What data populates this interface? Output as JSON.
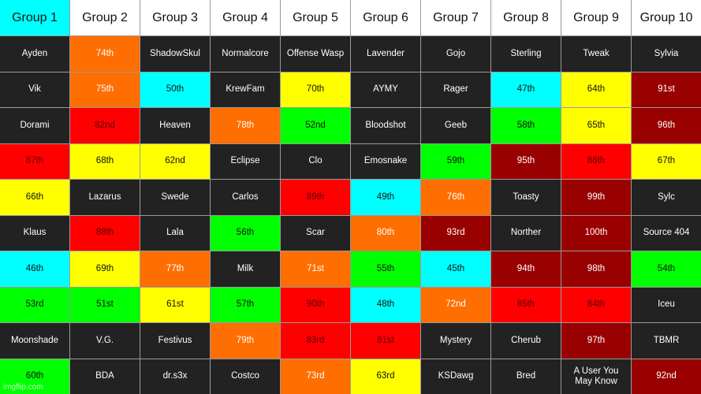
{
  "colors": {
    "cyan": "#00ffff",
    "orange": "#ff6e00",
    "yellow": "#ffff00",
    "green": "#00ff00",
    "red": "#ff0000",
    "darkred": "#990000",
    "dark": "#222222",
    "white": "#ffffff"
  },
  "headers": [
    {
      "label": "Group 1",
      "color": "cyan"
    },
    {
      "label": "Group 2",
      "color": "white"
    },
    {
      "label": "Group 3",
      "color": "white"
    },
    {
      "label": "Group 4",
      "color": "white"
    },
    {
      "label": "Group 5",
      "color": "white"
    },
    {
      "label": "Group 6",
      "color": "white"
    },
    {
      "label": "Group 7",
      "color": "white"
    },
    {
      "label": "Group 8",
      "color": "white"
    },
    {
      "label": "Group 9",
      "color": "white"
    },
    {
      "label": "Group 10",
      "color": "white"
    }
  ],
  "rows": [
    [
      {
        "text": "Ayden",
        "color": "dark"
      },
      {
        "text": "74th",
        "color": "orange"
      },
      {
        "text": "ShadowSkul",
        "color": "dark"
      },
      {
        "text": "Normalcore",
        "color": "dark"
      },
      {
        "text": "Offense Wasp",
        "color": "dark"
      },
      {
        "text": "Lavender",
        "color": "dark"
      },
      {
        "text": "Gojo",
        "color": "dark"
      },
      {
        "text": "Sterling",
        "color": "dark"
      },
      {
        "text": "Tweak",
        "color": "dark"
      },
      {
        "text": "Sylvia",
        "color": "dark"
      }
    ],
    [
      {
        "text": "Vik",
        "color": "dark"
      },
      {
        "text": "75th",
        "color": "orange"
      },
      {
        "text": "50th",
        "color": "cyan"
      },
      {
        "text": "KrewFam",
        "color": "dark"
      },
      {
        "text": "70th",
        "color": "yellow"
      },
      {
        "text": "AYMY",
        "color": "dark"
      },
      {
        "text": "Rager",
        "color": "dark"
      },
      {
        "text": "47th",
        "color": "cyan"
      },
      {
        "text": "64th",
        "color": "yellow"
      },
      {
        "text": "91st",
        "color": "darkred"
      }
    ],
    [
      {
        "text": "Dorami",
        "color": "dark"
      },
      {
        "text": "82nd",
        "color": "red"
      },
      {
        "text": "Heaven",
        "color": "dark"
      },
      {
        "text": "78th",
        "color": "orange"
      },
      {
        "text": "52nd",
        "color": "green"
      },
      {
        "text": "Bloodshot",
        "color": "dark"
      },
      {
        "text": "Geeb",
        "color": "dark"
      },
      {
        "text": "58th",
        "color": "green"
      },
      {
        "text": "65th",
        "color": "yellow"
      },
      {
        "text": "96th",
        "color": "darkred"
      }
    ],
    [
      {
        "text": "87th",
        "color": "red"
      },
      {
        "text": "68th",
        "color": "yellow"
      },
      {
        "text": "62nd",
        "color": "yellow"
      },
      {
        "text": "Eclipse",
        "color": "dark"
      },
      {
        "text": "Clo",
        "color": "dark"
      },
      {
        "text": "Emosnake",
        "color": "dark"
      },
      {
        "text": "59th",
        "color": "green"
      },
      {
        "text": "95th",
        "color": "darkred"
      },
      {
        "text": "86th",
        "color": "red"
      },
      {
        "text": "67th",
        "color": "yellow"
      }
    ],
    [
      {
        "text": "66th",
        "color": "yellow"
      },
      {
        "text": "Lazarus",
        "color": "dark"
      },
      {
        "text": "Swede",
        "color": "dark"
      },
      {
        "text": "Carlos",
        "color": "dark"
      },
      {
        "text": "89th",
        "color": "red"
      },
      {
        "text": "49th",
        "color": "cyan"
      },
      {
        "text": "76th",
        "color": "orange"
      },
      {
        "text": "Toasty",
        "color": "dark"
      },
      {
        "text": "99th",
        "color": "darkred"
      },
      {
        "text": "Sylc",
        "color": "dark"
      }
    ],
    [
      {
        "text": "Klaus",
        "color": "dark"
      },
      {
        "text": "88th",
        "color": "red"
      },
      {
        "text": "Lala",
        "color": "dark"
      },
      {
        "text": "56th",
        "color": "green"
      },
      {
        "text": "Scar",
        "color": "dark"
      },
      {
        "text": "80th",
        "color": "orange"
      },
      {
        "text": "93rd",
        "color": "darkred"
      },
      {
        "text": "Norther",
        "color": "dark"
      },
      {
        "text": "100th",
        "color": "darkred"
      },
      {
        "text": "Source 404",
        "color": "dark"
      }
    ],
    [
      {
        "text": "46th",
        "color": "cyan"
      },
      {
        "text": "69th",
        "color": "yellow"
      },
      {
        "text": "77th",
        "color": "orange"
      },
      {
        "text": "Milk",
        "color": "dark"
      },
      {
        "text": "71st",
        "color": "orange"
      },
      {
        "text": "55th",
        "color": "green"
      },
      {
        "text": "45th",
        "color": "cyan"
      },
      {
        "text": "94th",
        "color": "darkred"
      },
      {
        "text": "98th",
        "color": "darkred"
      },
      {
        "text": "54th",
        "color": "green"
      }
    ],
    [
      {
        "text": "53rd",
        "color": "green"
      },
      {
        "text": "51st",
        "color": "green"
      },
      {
        "text": "61st",
        "color": "yellow"
      },
      {
        "text": "57th",
        "color": "green"
      },
      {
        "text": "90th",
        "color": "red"
      },
      {
        "text": "48th",
        "color": "cyan"
      },
      {
        "text": "72nd",
        "color": "orange"
      },
      {
        "text": "85th",
        "color": "red"
      },
      {
        "text": "84th",
        "color": "red"
      },
      {
        "text": "Iceu",
        "color": "dark"
      }
    ],
    [
      {
        "text": "Moonshade",
        "color": "dark"
      },
      {
        "text": "V.G.",
        "color": "dark"
      },
      {
        "text": "Festivus",
        "color": "dark"
      },
      {
        "text": "79th",
        "color": "orange"
      },
      {
        "text": "83rd",
        "color": "red"
      },
      {
        "text": "81st",
        "color": "red"
      },
      {
        "text": "Mystery",
        "color": "dark"
      },
      {
        "text": "Cherub",
        "color": "dark"
      },
      {
        "text": "97th",
        "color": "darkred"
      },
      {
        "text": "TBMR",
        "color": "dark"
      }
    ],
    [
      {
        "text": "60th",
        "color": "green"
      },
      {
        "text": "BDA",
        "color": "dark"
      },
      {
        "text": "dr.s3x",
        "color": "dark"
      },
      {
        "text": "Costco",
        "color": "dark"
      },
      {
        "text": "73rd",
        "color": "orange"
      },
      {
        "text": "63rd",
        "color": "yellow"
      },
      {
        "text": "KSDawg",
        "color": "dark"
      },
      {
        "text": "Bred",
        "color": "dark"
      },
      {
        "text": "A User You May Know",
        "color": "dark"
      },
      {
        "text": "92nd",
        "color": "darkred"
      }
    ]
  ],
  "watermark": "imgflip.com"
}
